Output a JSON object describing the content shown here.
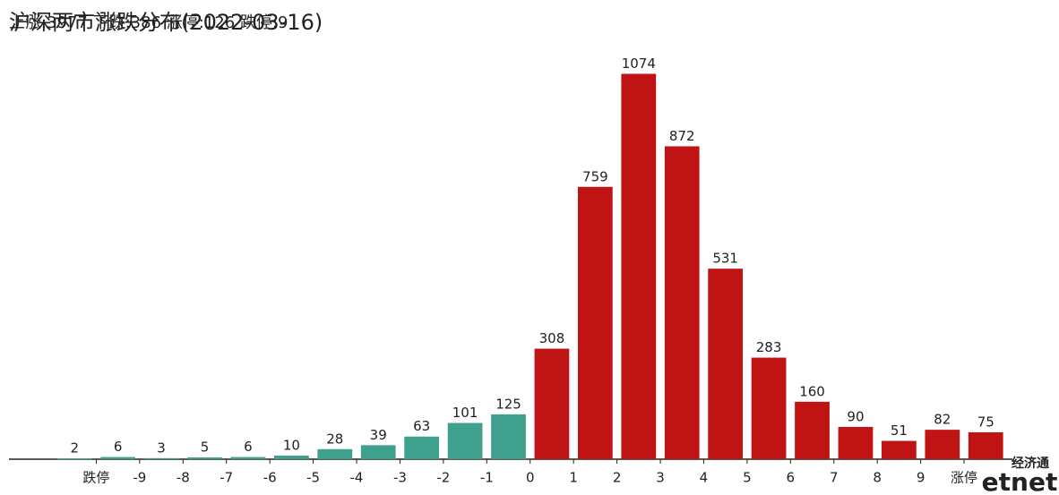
{
  "chart_data": {
    "type": "bar",
    "title": "沪深两市涨跌分布(2022-03-16)",
    "subtitle": "上涨:3977 下跌:386 涨停:126 跌停:9",
    "categories": [
      "跌停",
      "-9",
      "-8",
      "-7",
      "-6",
      "-5",
      "-4",
      "-3",
      "-2",
      "-1",
      "0",
      "1",
      "2",
      "3",
      "4",
      "5",
      "6",
      "7",
      "8",
      "9",
      "涨停",
      null
    ],
    "values": [
      2,
      6,
      3,
      5,
      6,
      10,
      28,
      39,
      63,
      101,
      125,
      308,
      759,
      1074,
      872,
      531,
      283,
      160,
      90,
      51,
      82,
      75
    ],
    "colors": [
      "#40a08e",
      "#40a08e",
      "#40a08e",
      "#40a08e",
      "#40a08e",
      "#40a08e",
      "#40a08e",
      "#40a08e",
      "#40a08e",
      "#40a08e",
      "#40a08e",
      "#c01414",
      "#c01414",
      "#c01414",
      "#c01414",
      "#c01414",
      "#c01414",
      "#c01414",
      "#c01414",
      "#c01414",
      "#c01414",
      "#c01414"
    ],
    "ylim": [
      0,
      1180
    ],
    "watermark": [
      "经济通",
      "etnet"
    ]
  }
}
